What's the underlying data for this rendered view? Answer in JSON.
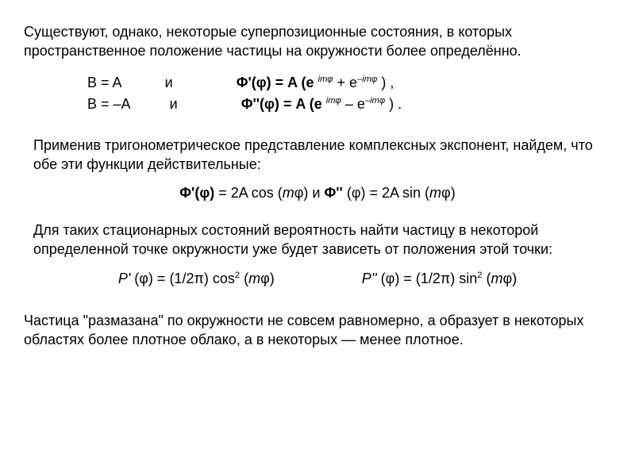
{
  "typography": {
    "body_font_family": "Arial",
    "body_font_size_pt": 13,
    "text_color": "#000000",
    "background_color": "#ffffff"
  },
  "p1": "Существуют, однако, некоторые суперпозиционные состояния, в которых пространственное положение частицы на окружности более определённо.",
  "eq1": {
    "line1_lhs": "B =  A",
    "line1_conj": "и",
    "line1_rhs_lead": "Φ'(φ)   =  A (e ",
    "line1_exp1": "imφ",
    "line1_mid": " +   e",
    "line1_exp2": "–imφ",
    "line1_tail": " ) ,",
    "line2_lhs": "B = –A",
    "line2_conj": "и",
    "line2_rhs_lead": "Φ''(φ)  =  A (e ",
    "line2_exp1": "imφ",
    "line2_mid": "  –   e",
    "line2_exp2": "–imφ",
    "line2_tail": " ) ."
  },
  "p2": "Применив тригонометрическое представление комплексных экспонент, найдем, что обе эти функции действительные:",
  "eq2": {
    "part1_lead": "Φ'(φ)",
    "part1_eq": "   =  2A cos (",
    "m1": "m",
    "phi1": "φ)",
    "conj": "    и     ",
    "part2_lead": "Φ'' ",
    "part2_eq": "(φ)  =  2A sin (",
    "m2": "m",
    "phi2": "φ)"
  },
  "p3": "Для таких стационарных состояний вероятность найти частицу в некоторой определенной точке окружности уже будет зависеть от положения этой точки:",
  "prob": {
    "p1_sym": "P'",
    "p1_body": " (φ) = (1/2π) cos",
    "p1_sup": "2",
    "p1_tail_open": " (",
    "p1_m": "m",
    "p1_tail_close": "φ)",
    "p2_sym": "P''",
    "p2_body": " (φ) = (1/2π) sin",
    "p2_sup": "2",
    "p2_tail_open": " (",
    "p2_m": "m",
    "p2_tail_close": "φ)"
  },
  "p4": "Частица \"размазана\" по окружности не совсем равномерно, а образует в некоторых областях более плотное облако, а в некоторых —  менее плотное."
}
